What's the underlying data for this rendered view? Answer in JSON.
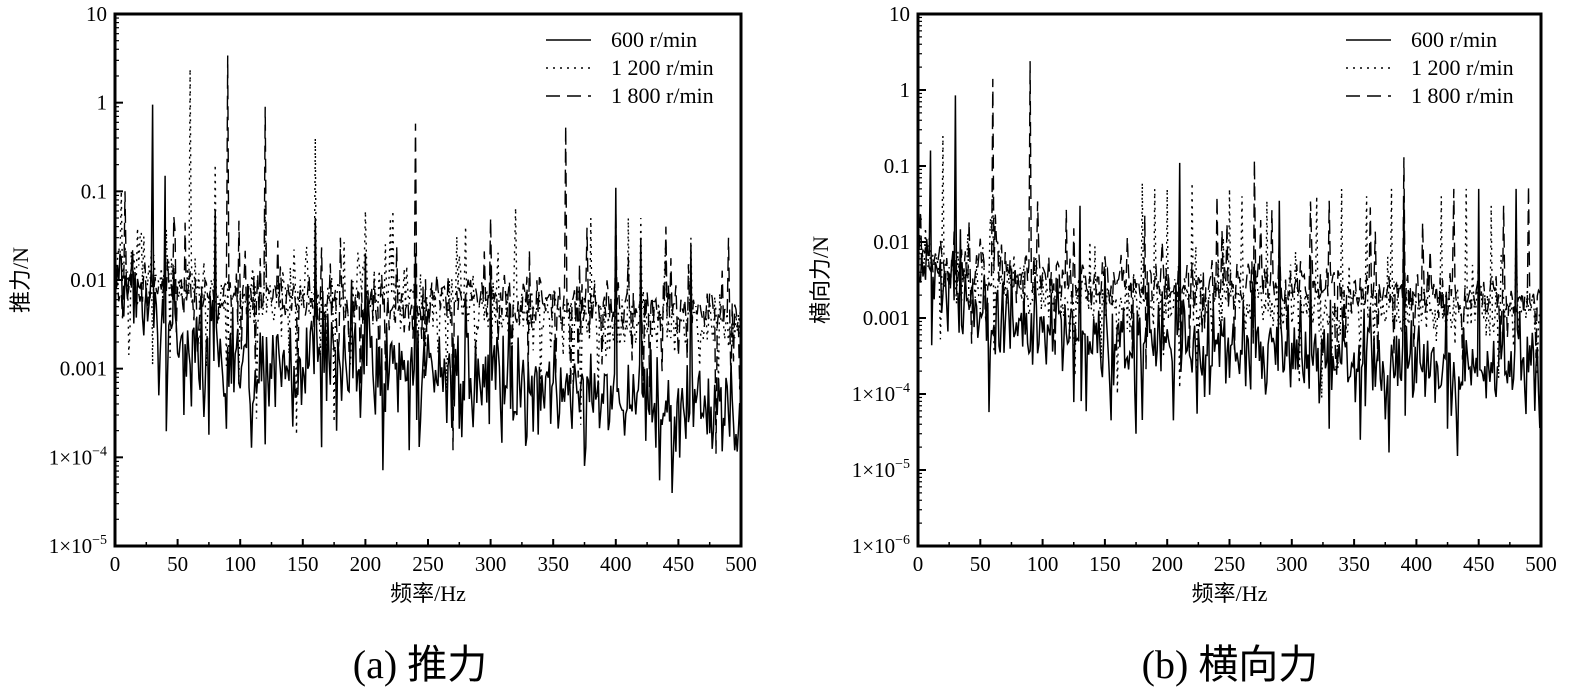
{
  "chart_data": [
    {
      "type": "line",
      "panel": "a",
      "caption": "(a) 推力",
      "xlabel": "频率/Hz",
      "ylabel": "推力/N",
      "yscale": "log",
      "xlim": [
        0,
        500
      ],
      "ylim_exp": [
        -5,
        1
      ],
      "x_ticks": [
        0,
        50,
        100,
        150,
        200,
        250,
        300,
        350,
        400,
        450,
        500
      ],
      "y_ticks": [
        {
          "exp": -5,
          "label": "1×10",
          "sup": "−5"
        },
        {
          "exp": -4,
          "label": "1×10",
          "sup": "−4"
        },
        {
          "exp": -3,
          "label": "0.001",
          "sup": ""
        },
        {
          "exp": -2,
          "label": "0.01",
          "sup": ""
        },
        {
          "exp": -1,
          "label": "0.1",
          "sup": ""
        },
        {
          "exp": 0,
          "label": "1",
          "sup": ""
        },
        {
          "exp": 1,
          "label": "10",
          "sup": ""
        }
      ],
      "legend": {
        "position": "top-right"
      },
      "series": [
        {
          "name": "600 r/min",
          "style": "solid",
          "baseline_log10": [
            [
              0,
              -2.0
            ],
            [
              50,
              -2.6
            ],
            [
              100,
              -2.9
            ],
            [
              200,
              -3.0
            ],
            [
              300,
              -3.15
            ],
            [
              400,
              -3.4
            ],
            [
              500,
              -3.5
            ]
          ],
          "noise": 0.45,
          "peaks": [
            [
              30,
              0.95
            ],
            [
              40,
              0.15
            ],
            [
              80,
              0.06
            ],
            [
              160,
              0.05
            ],
            [
              200,
              0.02
            ],
            [
              240,
              0.02
            ],
            [
              300,
              0.015
            ],
            [
              400,
              0.11
            ],
            [
              420,
              0.03
            ],
            [
              460,
              0.025
            ]
          ],
          "dips": [
            [
              35,
              0.0005
            ],
            [
              55,
              0.0003
            ],
            [
              75,
              0.00018
            ],
            [
              120,
              0.00014
            ],
            [
              165,
              0.00013
            ],
            [
              235,
              0.00012
            ],
            [
              375,
              8e-05
            ],
            [
              435,
              5.5e-05
            ],
            [
              495,
              0.00012
            ]
          ]
        },
        {
          "name": "1 200 r/min",
          "style": "dotted",
          "baseline_log10": [
            [
              0,
              -1.7
            ],
            [
              50,
              -2.0
            ],
            [
              100,
              -2.2
            ],
            [
              200,
              -2.15
            ],
            [
              300,
              -2.35
            ],
            [
              400,
              -2.45
            ],
            [
              500,
              -2.5
            ]
          ],
          "noise": 0.3,
          "peaks": [
            [
              5,
              0.1
            ],
            [
              20,
              0.03
            ],
            [
              60,
              2.4
            ],
            [
              80,
              0.2
            ],
            [
              120,
              0.07
            ],
            [
              160,
              0.4
            ],
            [
              200,
              0.06
            ],
            [
              220,
              0.05
            ],
            [
              280,
              0.04
            ],
            [
              320,
              0.065
            ],
            [
              380,
              0.05
            ],
            [
              410,
              0.05
            ],
            [
              420,
              0.05
            ],
            [
              440,
              0.03
            ],
            [
              460,
              0.03
            ]
          ],
          "dips": [
            [
              30,
              0.0011
            ],
            [
              145,
              0.00018
            ],
            [
              175,
              0.00025
            ]
          ]
        },
        {
          "name": "1 800 r/min",
          "style": "dashed",
          "baseline_log10": [
            [
              0,
              -2.0
            ],
            [
              50,
              -2.1
            ],
            [
              100,
              -2.15
            ],
            [
              200,
              -2.3
            ],
            [
              300,
              -2.2
            ],
            [
              400,
              -2.3
            ],
            [
              500,
              -2.4
            ]
          ],
          "noise": 0.25,
          "peaks": [
            [
              8,
              0.1
            ],
            [
              90,
              3.4
            ],
            [
              120,
              0.9
            ],
            [
              180,
              0.03
            ],
            [
              240,
              0.58
            ],
            [
              270,
              0.05
            ],
            [
              300,
              0.05
            ],
            [
              360,
              0.55
            ],
            [
              400,
              0.06
            ],
            [
              440,
              0.04
            ],
            [
              480,
              0.19
            ],
            [
              490,
              0.03
            ]
          ],
          "dips": [
            [
              270,
              0.00012
            ],
            [
              480,
              0.00011
            ]
          ]
        }
      ]
    },
    {
      "type": "line",
      "panel": "b",
      "caption": "(b) 横向力",
      "xlabel": "频率/Hz",
      "ylabel": "横向力/N",
      "yscale": "log",
      "xlim": [
        0,
        500
      ],
      "ylim_exp": [
        -6,
        1
      ],
      "x_ticks": [
        0,
        50,
        100,
        150,
        200,
        250,
        300,
        350,
        400,
        450,
        500
      ],
      "y_ticks": [
        {
          "exp": -6,
          "label": "1×10",
          "sup": "−6"
        },
        {
          "exp": -5,
          "label": "1×10",
          "sup": "−5"
        },
        {
          "exp": -4,
          "label": "1×10",
          "sup": "−4"
        },
        {
          "exp": -3,
          "label": "0.001",
          "sup": ""
        },
        {
          "exp": -2,
          "label": "0.01",
          "sup": ""
        },
        {
          "exp": -1,
          "label": "0.1",
          "sup": ""
        },
        {
          "exp": 0,
          "label": "1",
          "sup": ""
        },
        {
          "exp": 1,
          "label": "10",
          "sup": ""
        }
      ],
      "legend": {
        "position": "top-right"
      },
      "series": [
        {
          "name": "600 r/min",
          "style": "solid",
          "baseline_log10": [
            [
              0,
              -2.4
            ],
            [
              50,
              -2.9
            ],
            [
              100,
              -3.1
            ],
            [
              200,
              -3.35
            ],
            [
              300,
              -3.45
            ],
            [
              400,
              -3.55
            ],
            [
              500,
              -3.6
            ]
          ],
          "noise": 0.45,
          "peaks": [
            [
              10,
              0.16
            ],
            [
              30,
              0.85
            ],
            [
              130,
              0.03
            ],
            [
              155,
              0.05
            ],
            [
              210,
              0.11
            ],
            [
              290,
              0.035
            ],
            [
              330,
              0.09
            ],
            [
              390,
              0.04
            ],
            [
              450,
              0.05
            ],
            [
              480,
              0.05
            ]
          ],
          "dips": [
            [
              55,
              0.0005
            ],
            [
              155,
              4.5e-05
            ],
            [
              175,
              3e-05
            ],
            [
              205,
              4.5e-05
            ],
            [
              330,
              3.5e-05
            ],
            [
              355,
              2.5e-05
            ],
            [
              378,
              1.7e-05
            ],
            [
              425,
              3.5e-05
            ],
            [
              495,
              6e-05
            ]
          ]
        },
        {
          "name": "1 200 r/min",
          "style": "dotted",
          "baseline_log10": [
            [
              0,
              -2.3
            ],
            [
              50,
              -2.5
            ],
            [
              100,
              -2.7
            ],
            [
              200,
              -2.85
            ],
            [
              300,
              -2.85
            ],
            [
              400,
              -2.9
            ],
            [
              500,
              -2.9
            ]
          ],
          "noise": 0.3,
          "peaks": [
            [
              20,
              0.25
            ],
            [
              60,
              0.05
            ],
            [
              180,
              0.06
            ],
            [
              190,
              0.05
            ],
            [
              200,
              0.05
            ],
            [
              220,
              0.06
            ],
            [
              250,
              0.05
            ],
            [
              260,
              0.04
            ],
            [
              280,
              0.035
            ],
            [
              320,
              0.04
            ],
            [
              340,
              0.05
            ],
            [
              360,
              0.04
            ],
            [
              380,
              0.05
            ],
            [
              420,
              0.04
            ],
            [
              440,
              0.05
            ],
            [
              460,
              0.03
            ],
            [
              480,
              0.02
            ]
          ],
          "dips": [
            [
              160,
              0.0001
            ],
            [
              210,
              0.00012
            ]
          ]
        },
        {
          "name": "1 800 r/min",
          "style": "dashed",
          "baseline_log10": [
            [
              0,
              -2.2
            ],
            [
              50,
              -2.35
            ],
            [
              100,
              -2.5
            ],
            [
              200,
              -2.55
            ],
            [
              300,
              -2.55
            ],
            [
              400,
              -2.7
            ],
            [
              500,
              -2.75
            ]
          ],
          "noise": 0.25,
          "peaks": [
            [
              60,
              1.4
            ],
            [
              90,
              2.4
            ],
            [
              240,
              0.04
            ],
            [
              270,
              0.12
            ],
            [
              330,
              0.035
            ],
            [
              390,
              0.13
            ],
            [
              430,
              0.05
            ],
            [
              470,
              0.03
            ],
            [
              490,
              0.055
            ]
          ],
          "dips": [
            [
              110,
              0.0003
            ]
          ]
        }
      ]
    }
  ]
}
